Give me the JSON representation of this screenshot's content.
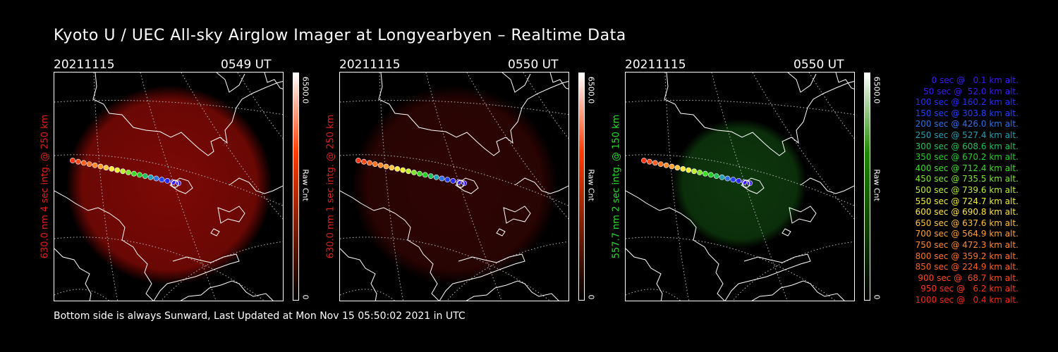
{
  "title": "Kyoto U / UEC All-sky Airglow Imager at Longyearbyen – Realtime Data",
  "panels": [
    {
      "date": "20211115",
      "time": "0549 UT",
      "ylabel": "630.0 nm 4 sec intg. @ 250 km",
      "label_color": "#e0201a",
      "cbar_max": "6500.0",
      "cbar_min": "0",
      "cbar_unit": "Raw Cnt",
      "emission_color": "#8a0a06",
      "emission_opacity": 0.9,
      "cbar_top": "#ff3a00"
    },
    {
      "date": "20211115",
      "time": "0550 UT",
      "ylabel": "630.0 nm 1 sec intg. @ 250 km",
      "label_color": "#e0201a",
      "cbar_max": "6500.0",
      "cbar_min": "0",
      "cbar_unit": "Raw Cnt",
      "emission_color": "#3a0504",
      "emission_opacity": 0.8,
      "cbar_top": "#ff3a00"
    },
    {
      "date": "20211115",
      "time": "0550 UT",
      "ylabel": "557.7 nm 2 sec intg. @ 150 km",
      "label_color": "#2bdc2b",
      "cbar_max": "6500.0",
      "cbar_min": "0",
      "cbar_unit": "Raw Cnt",
      "emission_color": "#0f3d0e",
      "emission_opacity": 0.9,
      "cbar_top": "#1e8a00"
    }
  ],
  "footer": "Bottom side is always Sunward, Last Updated at Mon Nov 15 05:50:02 2021 in UTC",
  "legend": [
    {
      "text": "0 sec @   0.1 km alt.",
      "color": "#3a1aff"
    },
    {
      "text": "50 sec @  52.0 km alt.",
      "color": "#3a1aff"
    },
    {
      "text": "100 sec @ 160.2 km alt.",
      "color": "#2a2aff"
    },
    {
      "text": "150 sec @ 303.8 km alt.",
      "color": "#2040ff"
    },
    {
      "text": "200 sec @ 426.0 km alt.",
      "color": "#2a70e8"
    },
    {
      "text": "250 sec @ 527.4 km alt.",
      "color": "#1fa0b4"
    },
    {
      "text": "300 sec @ 608.6 km alt.",
      "color": "#1ec35a"
    },
    {
      "text": "350 sec @ 670.2 km alt.",
      "color": "#20d020"
    },
    {
      "text": "400 sec @ 712.4 km alt.",
      "color": "#3ade22"
    },
    {
      "text": "450 sec @ 735.5 km alt.",
      "color": "#7ee82a"
    },
    {
      "text": "500 sec @ 739.6 km alt.",
      "color": "#bff030"
    },
    {
      "text": "550 sec @ 724.7 km alt.",
      "color": "#f0f030"
    },
    {
      "text": "600 sec @ 690.8 km alt.",
      "color": "#ffe640"
    },
    {
      "text": "650 sec @ 637.6 km alt.",
      "color": "#ffc23a"
    },
    {
      "text": "700 sec @ 564.9 km alt.",
      "color": "#ffa030"
    },
    {
      "text": "750 sec @ 472.3 km alt.",
      "color": "#ff8a2a"
    },
    {
      "text": "800 sec @ 359.2 km alt.",
      "color": "#ff7422"
    },
    {
      "text": "850 sec @ 224.9 km alt.",
      "color": "#ff5e1c"
    },
    {
      "text": "900 sec @  68.7 km alt.",
      "color": "#ff4818"
    },
    {
      "text": "950 sec @   6.2 km alt.",
      "color": "#ff3414"
    },
    {
      "text": "1000 sec @   0.4 km alt.",
      "color": "#ff2410"
    }
  ]
}
